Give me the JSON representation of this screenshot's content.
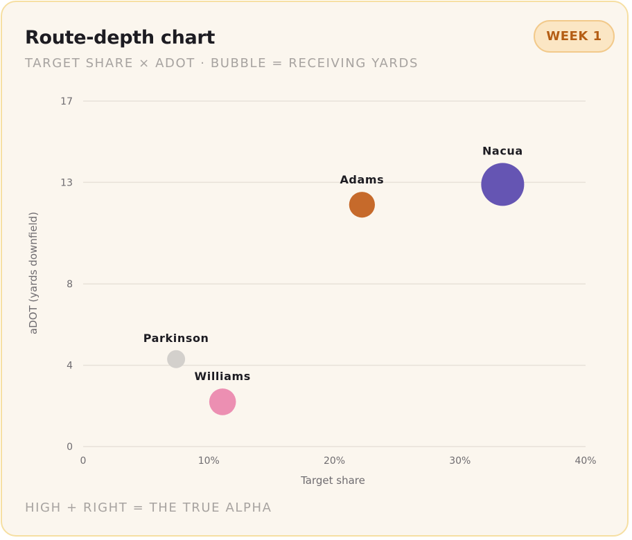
{
  "header": {
    "title": "Route-depth chart",
    "subtitle": "TARGET SHARE × ADOT · BUBBLE = RECEIVING YARDS",
    "badge": "WEEK 1"
  },
  "footer": {
    "note": "HIGH + RIGHT = THE TRUE ALPHA"
  },
  "chart_data": {
    "type": "scatter",
    "xlabel": "Target share",
    "ylabel": "aDOT (yards downfield)",
    "xlim": [
      0,
      0.4
    ],
    "ylim": [
      0,
      17
    ],
    "x_ticks": [
      0,
      0.1,
      0.2,
      0.3,
      0.4
    ],
    "x_tick_labels": [
      "0",
      "10%",
      "20%",
      "30%",
      "40%"
    ],
    "y_ticks": [
      0,
      4,
      8,
      13,
      17
    ],
    "y_tick_labels": [
      "0",
      "4",
      "8",
      "13",
      "17"
    ],
    "grid": true,
    "bubble_size_meaning": "receiving yards",
    "points": [
      {
        "name": "Nacua",
        "x": 0.334,
        "y": 12.9,
        "size": 1.0,
        "color": "#6555b3"
      },
      {
        "name": "Adams",
        "x": 0.222,
        "y": 11.9,
        "size": 0.45,
        "color": "#c66a2b"
      },
      {
        "name": "Parkinson",
        "x": 0.074,
        "y": 4.3,
        "size": 0.2,
        "color": "#d3d0cc"
      },
      {
        "name": "Williams",
        "x": 0.111,
        "y": 2.2,
        "size": 0.48,
        "color": "#ec8fb2"
      }
    ]
  }
}
